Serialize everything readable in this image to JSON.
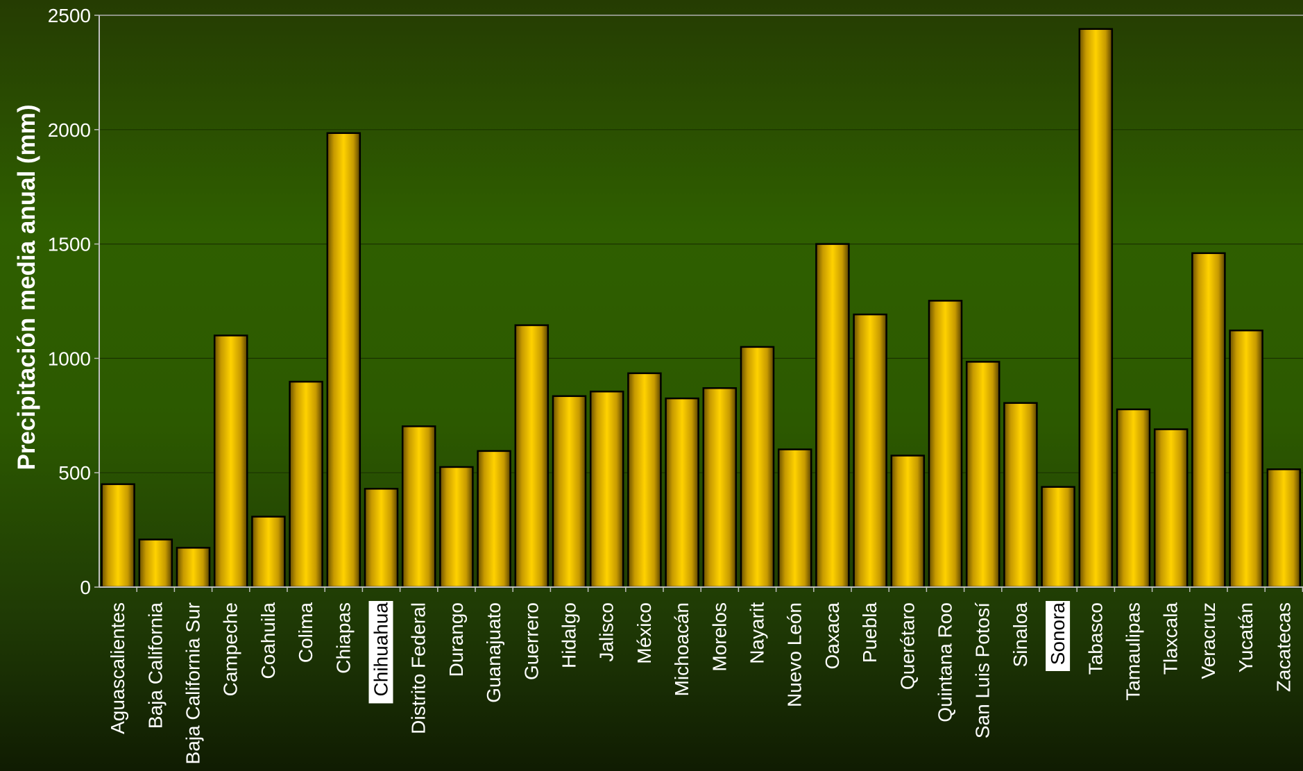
{
  "chart_data": {
    "type": "bar",
    "ylabel": "Precipitación media anual (mm)",
    "ylim": [
      0,
      2500
    ],
    "yticks": [
      "0",
      "500",
      "1000",
      "1500",
      "2000",
      "2500"
    ],
    "categories": [
      "Aguascalientes",
      "Baja California",
      "Baja California Sur",
      "Campeche",
      "Coahuila",
      "Colima",
      "Chiapas",
      "Chihuahua",
      "Distrito Federal",
      "Durango",
      "Guanajuato",
      "Guerrero",
      "Hidalgo",
      "Jalisco",
      "México",
      "Michoacán",
      "Morelos",
      "Nayarit",
      "Nuevo León",
      "Oaxaca",
      "Puebla",
      "Querétaro",
      "Quintana Roo",
      "San Luis Potosí",
      "Sinaloa",
      "Sonora",
      "Tabasco",
      "Tamaulipas",
      "Tlaxcala",
      "Veracruz",
      "Yucatán",
      "Zacatecas"
    ],
    "values": [
      450,
      208,
      172,
      1100,
      308,
      898,
      1985,
      430,
      703,
      525,
      595,
      1145,
      835,
      855,
      935,
      825,
      870,
      1050,
      602,
      1500,
      1192,
      575,
      1252,
      985,
      805,
      438,
      2440,
      777,
      690,
      1460,
      1122,
      515
    ],
    "highlighted": [
      "Chihuahua",
      "Sonora"
    ],
    "grid": true,
    "colors": {
      "bar": "#ffcc00",
      "bar_edge": "#000000",
      "highlight_box": "#ffffff",
      "axis": "#c0c0c0"
    }
  }
}
